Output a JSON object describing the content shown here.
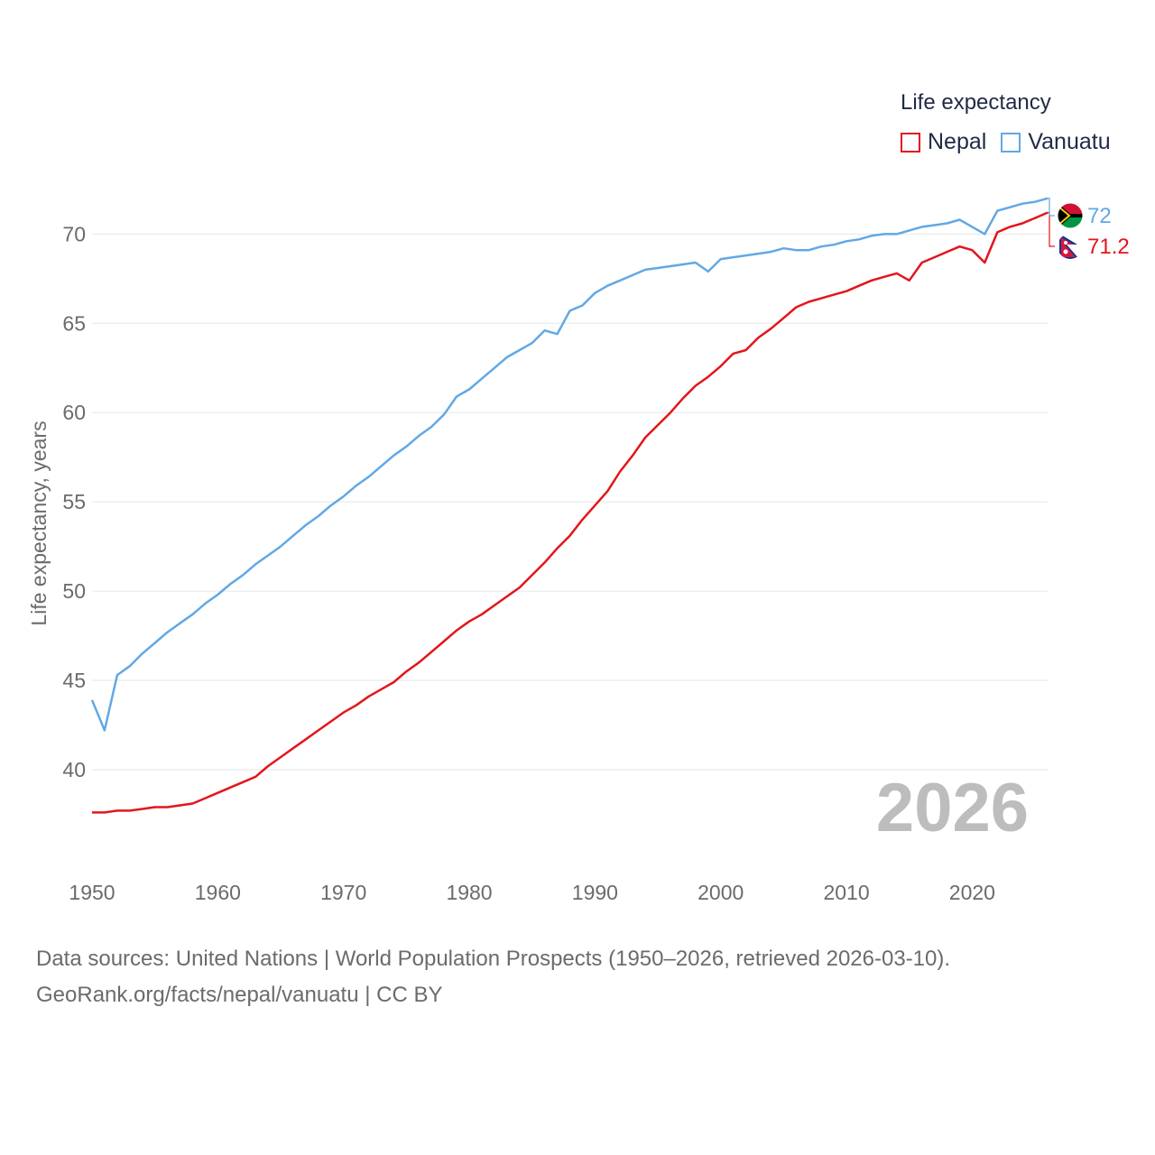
{
  "legend": {
    "title": "Life expectancy",
    "items": [
      {
        "name": "Nepal",
        "color": "#e3151b"
      },
      {
        "name": "Vanuatu",
        "color": "#62a8e5"
      }
    ]
  },
  "year_label": "2026",
  "footer": {
    "line1": "Data sources: United Nations | World Population Prospects (1950–2026, retrieved 2026-03-10).",
    "line2": "GeoRank.org/facts/nepal/vanuatu | CC BY"
  },
  "chart_data": {
    "type": "line",
    "title": "Life expectancy",
    "xlabel": "",
    "ylabel": "Life expectancy, years",
    "xlim": [
      1950,
      2026
    ],
    "ylim": [
      35.6,
      73
    ],
    "x_ticks": [
      1950,
      1960,
      1970,
      1980,
      1990,
      2000,
      2010,
      2020
    ],
    "y_ticks": [
      40,
      45,
      50,
      55,
      60,
      65,
      70
    ],
    "grid": true,
    "legend_position": "top-right",
    "x": [
      1950,
      1951,
      1952,
      1953,
      1954,
      1955,
      1956,
      1957,
      1958,
      1959,
      1960,
      1961,
      1962,
      1963,
      1964,
      1965,
      1966,
      1967,
      1968,
      1969,
      1970,
      1971,
      1972,
      1973,
      1974,
      1975,
      1976,
      1977,
      1978,
      1979,
      1980,
      1981,
      1982,
      1983,
      1984,
      1985,
      1986,
      1987,
      1988,
      1989,
      1990,
      1991,
      1992,
      1993,
      1994,
      1995,
      1996,
      1997,
      1998,
      1999,
      2000,
      2001,
      2002,
      2003,
      2004,
      2005,
      2006,
      2007,
      2008,
      2009,
      2010,
      2011,
      2012,
      2013,
      2014,
      2015,
      2016,
      2017,
      2018,
      2019,
      2020,
      2021,
      2022,
      2023,
      2024,
      2025,
      2026
    ],
    "series": [
      {
        "name": "Nepal",
        "color": "#e3151b",
        "end_label": "71.2",
        "values": [
          37.6,
          37.6,
          37.7,
          37.7,
          37.8,
          37.9,
          37.9,
          38.0,
          38.1,
          38.4,
          38.7,
          39.0,
          39.3,
          39.6,
          40.2,
          40.7,
          41.2,
          41.7,
          42.2,
          42.7,
          43.2,
          43.6,
          44.1,
          44.5,
          44.9,
          45.5,
          46.0,
          46.6,
          47.2,
          47.8,
          48.3,
          48.7,
          49.2,
          49.7,
          50.2,
          50.9,
          51.6,
          52.4,
          53.1,
          54.0,
          54.8,
          55.6,
          56.7,
          57.6,
          58.6,
          59.3,
          60.0,
          60.8,
          61.5,
          62.0,
          62.6,
          63.3,
          63.5,
          64.2,
          64.7,
          65.3,
          65.9,
          66.2,
          66.4,
          66.6,
          66.8,
          67.1,
          67.4,
          67.6,
          67.8,
          67.4,
          68.4,
          68.7,
          69.0,
          69.3,
          69.1,
          68.4,
          70.1,
          70.4,
          70.6,
          70.9,
          71.2
        ]
      },
      {
        "name": "Vanuatu",
        "color": "#62a8e5",
        "end_label": "72",
        "values": [
          43.9,
          42.2,
          45.3,
          45.8,
          46.5,
          47.1,
          47.7,
          48.2,
          48.7,
          49.3,
          49.8,
          50.4,
          50.9,
          51.5,
          52.0,
          52.5,
          53.1,
          53.7,
          54.2,
          54.8,
          55.3,
          55.9,
          56.4,
          57.0,
          57.6,
          58.1,
          58.7,
          59.2,
          59.9,
          60.9,
          61.3,
          61.9,
          62.5,
          63.1,
          63.5,
          63.9,
          64.6,
          64.4,
          65.7,
          66.0,
          66.7,
          67.1,
          67.4,
          67.7,
          68.0,
          68.1,
          68.2,
          68.3,
          68.4,
          67.9,
          68.6,
          68.7,
          68.8,
          68.9,
          69.0,
          69.2,
          69.1,
          69.1,
          69.3,
          69.4,
          69.6,
          69.7,
          69.9,
          70.0,
          70.0,
          70.2,
          70.4,
          70.5,
          70.6,
          70.8,
          70.4,
          70.0,
          71.3,
          71.5,
          71.7,
          71.8,
          72.0
        ]
      }
    ]
  }
}
